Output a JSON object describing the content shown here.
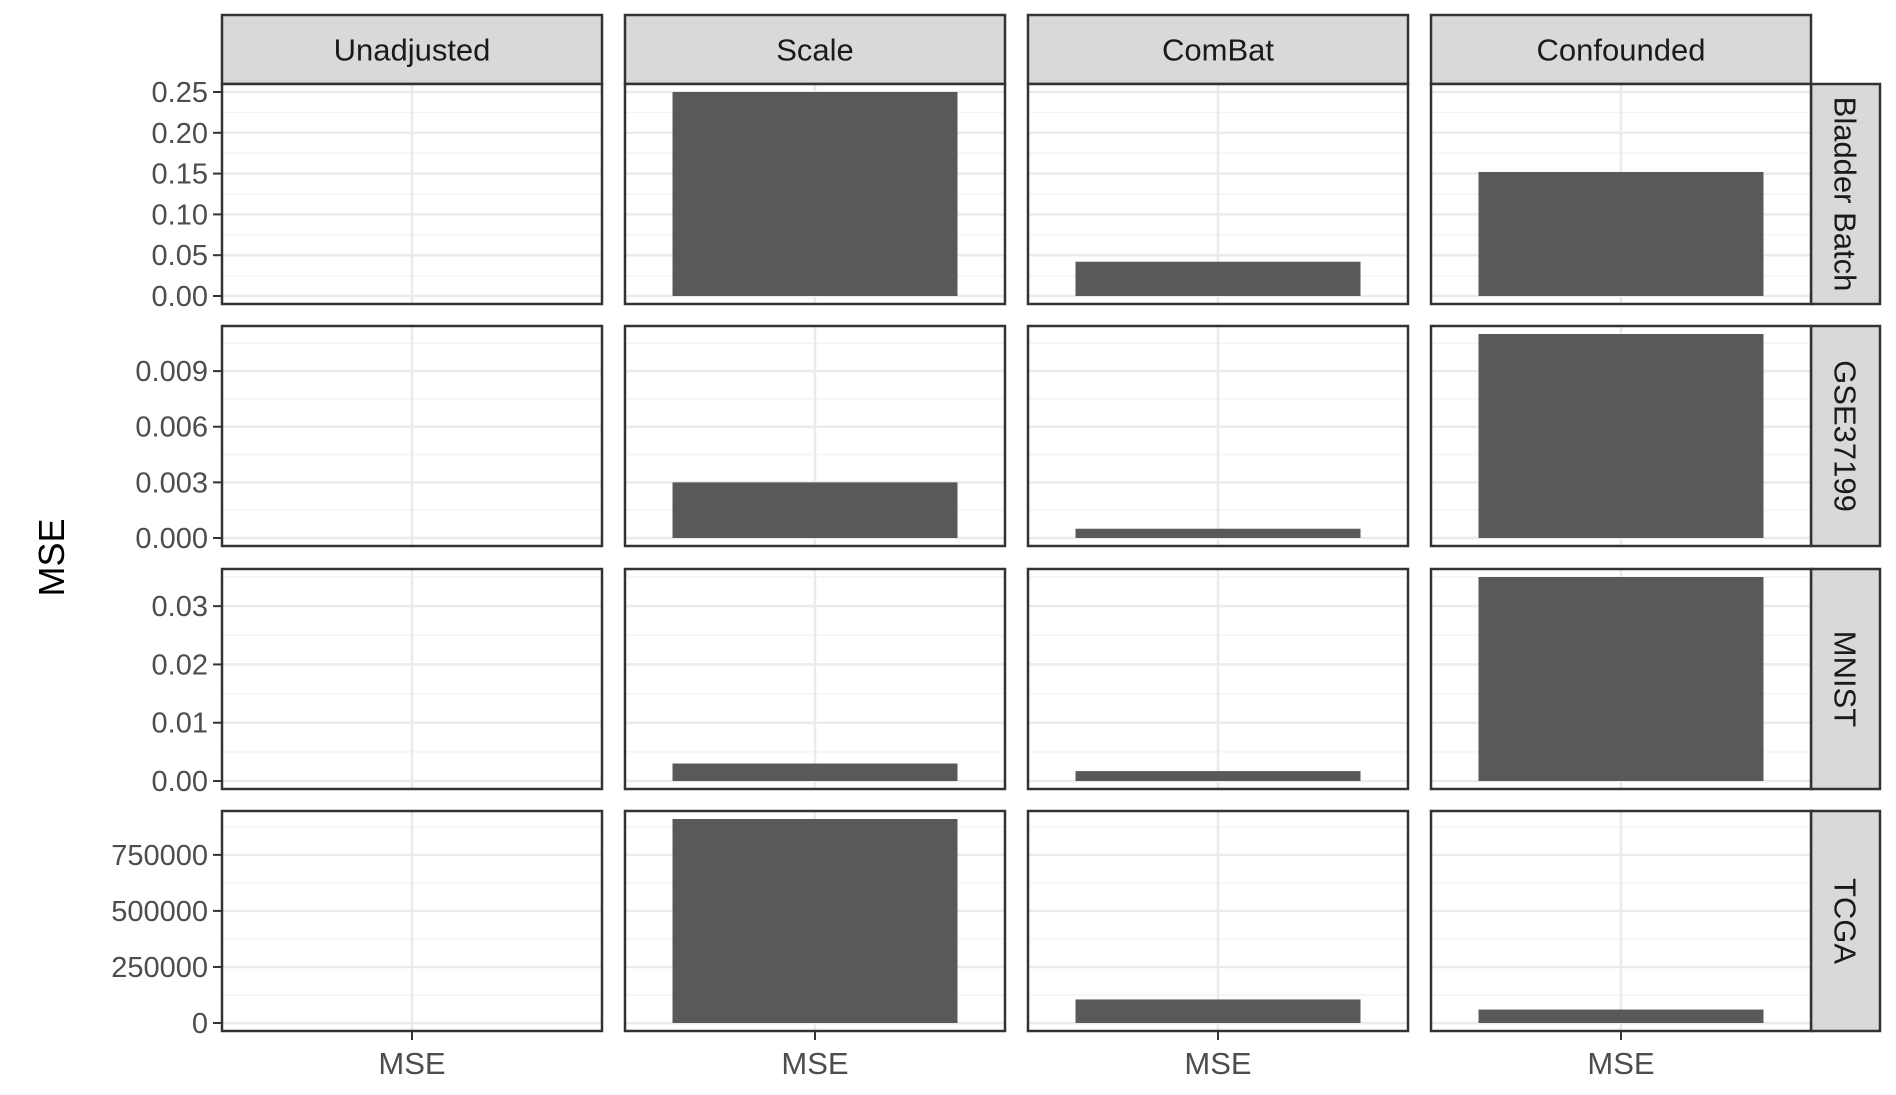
{
  "chart_data": {
    "type": "bar",
    "facet_layout": "grid",
    "ylabel": "MSE",
    "xlabel": "",
    "column_labels": [
      "Unadjusted",
      "Scale",
      "ComBat",
      "Confounded"
    ],
    "row_labels": [
      "Bladder Batch",
      "GSE37199",
      "MNIST",
      "TCGA"
    ],
    "categories": [
      "MSE"
    ],
    "grid": true,
    "colors": {
      "bar": "#595959",
      "strip_fill": "#d9d9d9",
      "panel_border": "#333333",
      "grid_major": "#ebebeb",
      "grid_minor": "#f4f4f4",
      "axis_text": "#4d4d4d"
    },
    "rows": [
      {
        "label": "Bladder Batch",
        "ylim": [
          0,
          0.25
        ],
        "yticks": [
          0,
          0.05,
          0.1,
          0.15,
          0.2,
          0.25
        ],
        "ytick_labels": [
          "0.00",
          "0.05",
          "0.10",
          "0.15",
          "0.20",
          "0.25"
        ],
        "values": [
          0,
          0.25,
          0.042,
          0.152
        ]
      },
      {
        "label": "GSE37199",
        "ylim": [
          0,
          0.011
        ],
        "yticks": [
          0,
          0.003,
          0.006,
          0.009
        ],
        "ytick_labels": [
          "0.000",
          "0.003",
          "0.006",
          "0.009"
        ],
        "values": [
          0,
          0.003,
          0.0005,
          0.011
        ]
      },
      {
        "label": "MNIST",
        "ylim": [
          0,
          0.035
        ],
        "yticks": [
          0,
          0.01,
          0.02,
          0.03
        ],
        "ytick_labels": [
          "0.00",
          "0.01",
          "0.02",
          "0.03"
        ],
        "values": [
          0,
          0.003,
          0.0017,
          0.035
        ]
      },
      {
        "label": "TCGA",
        "ylim": [
          0,
          910000
        ],
        "yticks": [
          0,
          250000,
          500000,
          750000
        ],
        "ytick_labels": [
          "0",
          "250000",
          "500000",
          "750000"
        ],
        "values": [
          0,
          910000,
          105000,
          60000
        ]
      }
    ]
  }
}
